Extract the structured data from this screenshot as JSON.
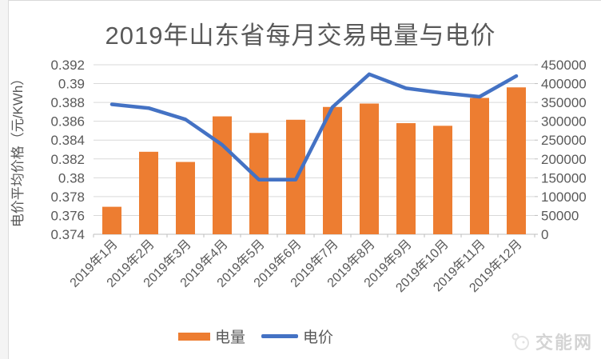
{
  "chart_data": {
    "type": "combo-bar-line",
    "title": "2019年山东省每月交易电量与电价",
    "categories": [
      "2019年1月",
      "2019年2月",
      "2019年3月",
      "2019年4月",
      "2019年5月",
      "2019年6月",
      "2019年7月",
      "2019年8月",
      "2019年9月",
      "2019年10月",
      "2019年11月",
      "2019年12月"
    ],
    "series": [
      {
        "name": "电量",
        "type": "bar",
        "axis": "right",
        "color": "#ED7D31",
        "values": [
          73000,
          219000,
          192000,
          313000,
          269000,
          304000,
          338000,
          347000,
          295000,
          288000,
          362000,
          390000
        ]
      },
      {
        "name": "电价",
        "type": "line",
        "axis": "left",
        "color": "#4472C4",
        "values": [
          0.3878,
          0.3874,
          0.3862,
          0.3835,
          0.3798,
          0.3798,
          0.3875,
          0.391,
          0.3895,
          0.389,
          0.3886,
          0.3908
        ]
      }
    ],
    "left_axis": {
      "title": "电价平均价格（元/KWh）",
      "min": 0.374,
      "max": 0.392,
      "step": 0.002,
      "tick_labels": [
        "0.392",
        "0.39",
        "0.388",
        "0.386",
        "0.384",
        "0.382",
        "0.38",
        "0.378",
        "0.376",
        "0.374"
      ]
    },
    "right_axis": {
      "min": 0,
      "max": 450000,
      "step": 50000,
      "tick_labels": [
        "450000",
        "400000",
        "350000",
        "300000",
        "250000",
        "200000",
        "150000",
        "100000",
        "50000",
        "0"
      ]
    },
    "grid": true,
    "legend_position": "bottom"
  },
  "watermark": {
    "text": "交能网"
  },
  "colors": {
    "bar": "#ED7D31",
    "line": "#4472C4",
    "grid": "#D9D9D9",
    "axis_line": "#BFBFBF",
    "text": "#595959",
    "watermark_text": "#D4D4D4"
  }
}
